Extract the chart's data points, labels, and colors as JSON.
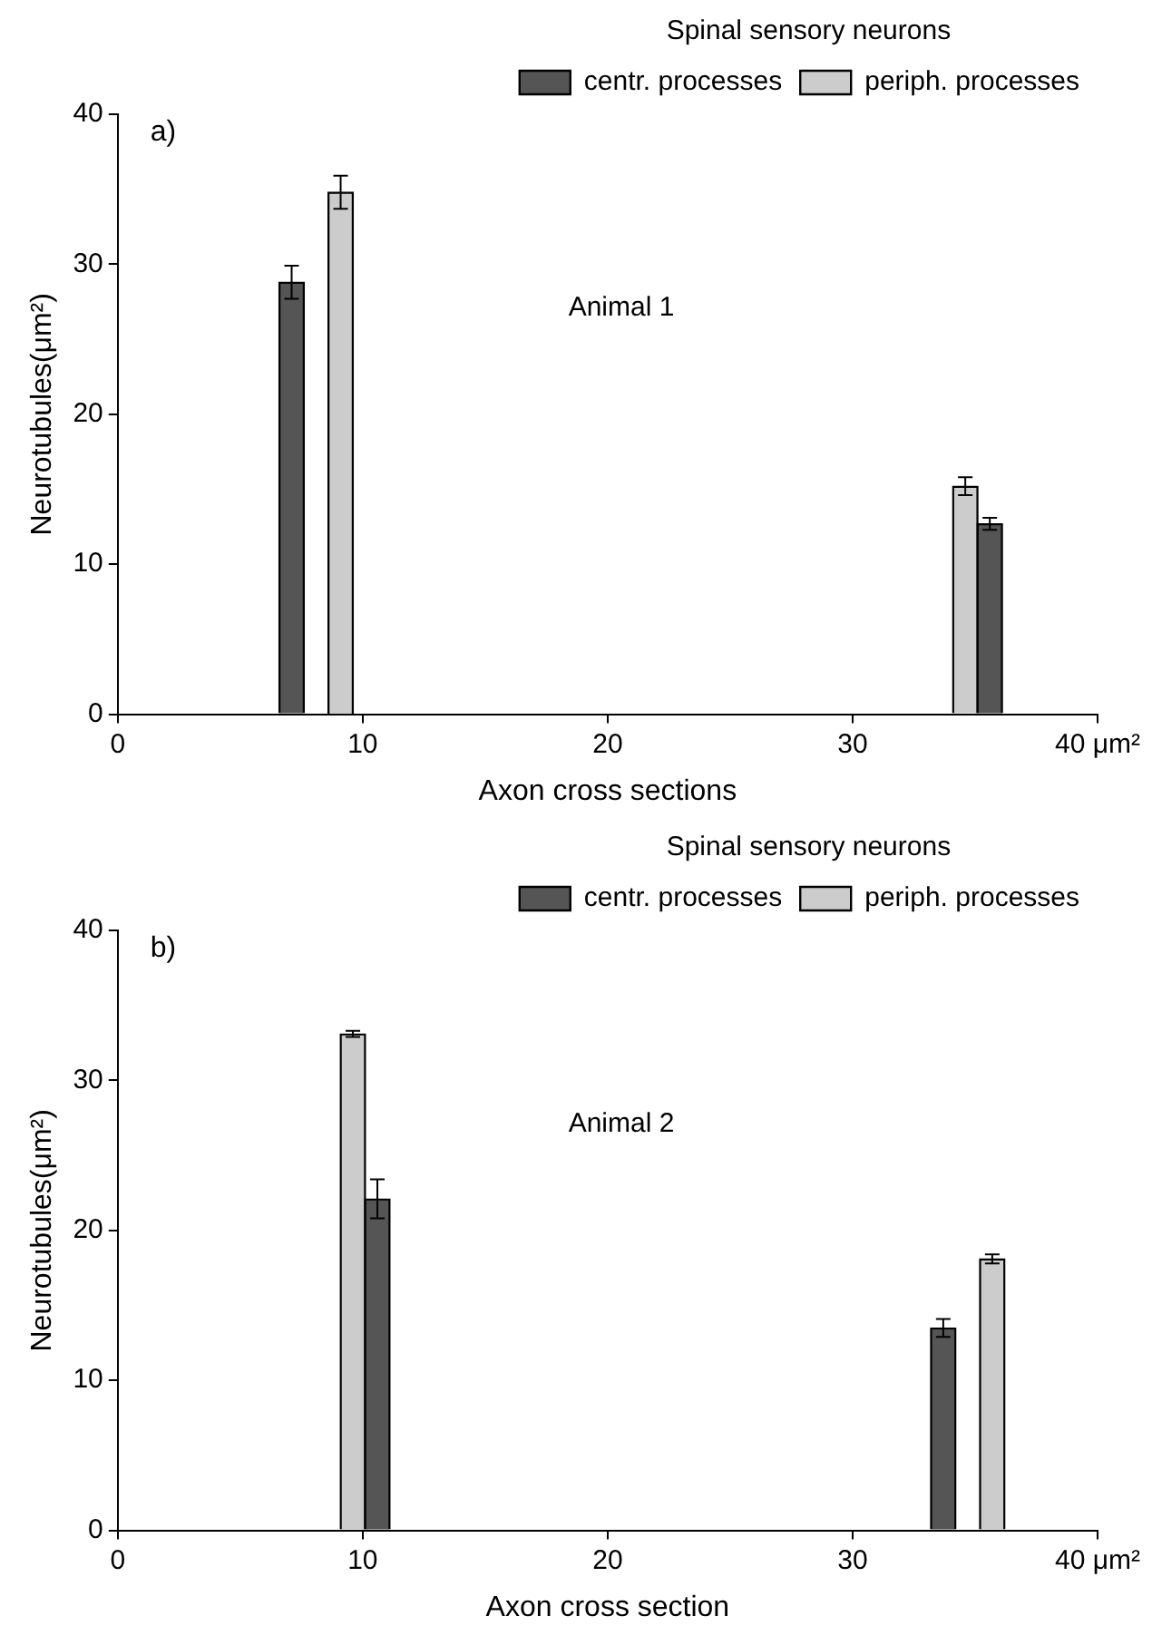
{
  "chart_data": [
    {
      "type": "bar",
      "xlabel": "Axon cross sections",
      "ylabel": "Neurotubules(μm²)",
      "legend_title": "Spinal sensory neurons",
      "legend": "top right",
      "grid": false,
      "annotations": [
        "a)",
        "Animal 1"
      ],
      "xlim": [
        0,
        40
      ],
      "xticks": [
        0,
        10,
        20,
        30,
        {
          "value": 40,
          "label": "40 μm²"
        }
      ],
      "ylim": [
        0,
        40
      ],
      "yticks": [
        0,
        10,
        20,
        30,
        40
      ],
      "series": [
        {
          "name": "centr. processes",
          "color": "#555555",
          "x": [
            7.1,
            35.6
          ],
          "values": [
            28.8,
            12.7
          ],
          "errors": [
            1.1,
            0.4
          ]
        },
        {
          "name": "periph. processes",
          "color": "#cccccc",
          "x": [
            9.1,
            34.6
          ],
          "values": [
            34.8,
            15.2
          ],
          "errors": [
            1.1,
            0.6
          ]
        }
      ]
    },
    {
      "type": "bar",
      "xlabel": "Axon cross section",
      "ylabel": "Neurotubules(μm²)",
      "legend_title": "Spinal sensory neurons",
      "legend": "top right",
      "grid": false,
      "annotations": [
        "b)",
        "Animal 2"
      ],
      "xlim": [
        0,
        40
      ],
      "xticks": [
        0,
        10,
        20,
        30,
        {
          "value": 40,
          "label": "40 μm²"
        }
      ],
      "ylim": [
        0,
        40
      ],
      "yticks": [
        0,
        10,
        20,
        30,
        40
      ],
      "series": [
        {
          "name": "centr. processes",
          "color": "#555555",
          "x": [
            10.6,
            33.7
          ],
          "values": [
            22.1,
            13.5
          ],
          "errors": [
            1.3,
            0.6
          ]
        },
        {
          "name": "periph. processes",
          "color": "#cccccc",
          "x": [
            9.6,
            35.7
          ],
          "values": [
            33.1,
            18.1
          ],
          "errors": [
            0.2,
            0.3
          ]
        }
      ]
    }
  ]
}
